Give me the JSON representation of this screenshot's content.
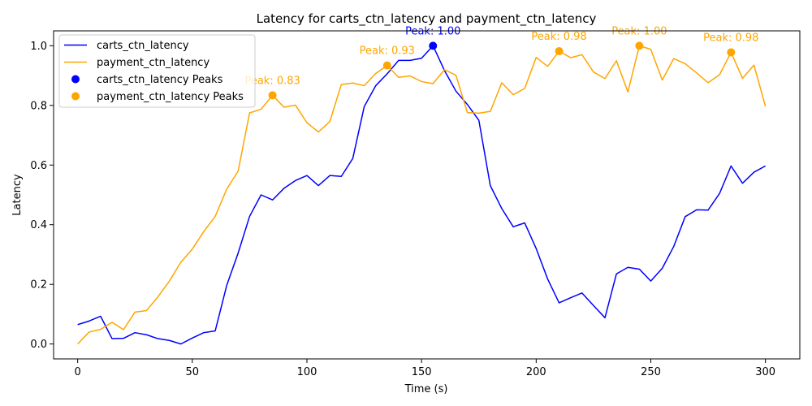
{
  "chart_data": {
    "type": "line",
    "title": "Latency for carts_ctn_latency and payment_ctn_latency",
    "xlabel": "Time (s)",
    "ylabel": "Latency",
    "xlim": [
      -10.5,
      315
    ],
    "ylim": [
      -0.05,
      1.05
    ],
    "x_ticks": [
      0,
      50,
      100,
      150,
      200,
      250,
      300
    ],
    "y_ticks": [
      0.0,
      0.2,
      0.4,
      0.6,
      0.8,
      1.0
    ],
    "x_tick_labels": [
      "0",
      "50",
      "100",
      "150",
      "200",
      "250",
      "300"
    ],
    "y_tick_labels": [
      "0.0",
      "0.2",
      "0.4",
      "0.6",
      "0.8",
      "1.0"
    ],
    "grid": false,
    "legend_position": "top-left",
    "x": [
      0,
      5,
      10,
      15,
      20,
      25,
      30,
      35,
      40,
      45,
      50,
      55,
      60,
      65,
      70,
      75,
      80,
      85,
      90,
      95,
      100,
      105,
      110,
      115,
      120,
      125,
      130,
      135,
      140,
      145,
      150,
      155,
      160,
      165,
      170,
      175,
      180,
      185,
      190,
      195,
      200,
      205,
      210,
      215,
      220,
      225,
      230,
      235,
      240,
      245,
      250,
      255,
      260,
      265,
      270,
      275,
      280,
      285,
      290,
      295,
      300
    ],
    "series": [
      {
        "name": "carts_ctn_latency",
        "color": "#0000ff",
        "values": [
          0.065,
          0.077,
          0.093,
          0.018,
          0.019,
          0.038,
          0.031,
          0.018,
          0.012,
          0.0,
          0.02,
          0.038,
          0.044,
          0.196,
          0.305,
          0.428,
          0.5,
          0.483,
          0.522,
          0.548,
          0.565,
          0.531,
          0.565,
          0.562,
          0.622,
          0.796,
          0.866,
          0.906,
          0.951,
          0.951,
          0.958,
          1.0,
          0.917,
          0.848,
          0.803,
          0.75,
          0.531,
          0.454,
          0.393,
          0.406,
          0.32,
          0.218,
          0.138,
          0.155,
          0.171,
          0.129,
          0.088,
          0.235,
          0.257,
          0.251,
          0.211,
          0.254,
          0.327,
          0.427,
          0.45,
          0.449,
          0.505,
          0.597,
          0.539,
          0.576,
          0.597
        ],
        "peaks": [
          {
            "x": 155,
            "y": 1.0,
            "label": "Peak: 1.00"
          }
        ]
      },
      {
        "name": "payment_ctn_latency",
        "color": "#ffa500",
        "values": [
          0.0,
          0.04,
          0.049,
          0.073,
          0.048,
          0.107,
          0.112,
          0.158,
          0.211,
          0.274,
          0.318,
          0.377,
          0.428,
          0.519,
          0.58,
          0.775,
          0.787,
          0.834,
          0.794,
          0.801,
          0.742,
          0.711,
          0.746,
          0.87,
          0.875,
          0.866,
          0.907,
          0.934,
          0.894,
          0.899,
          0.88,
          0.873,
          0.92,
          0.901,
          0.776,
          0.774,
          0.78,
          0.876,
          0.836,
          0.857,
          0.961,
          0.931,
          0.982,
          0.96,
          0.97,
          0.912,
          0.89,
          0.95,
          0.845,
          1.0,
          0.988,
          0.885,
          0.957,
          0.94,
          0.909,
          0.876,
          0.903,
          0.978,
          0.891,
          0.935,
          0.797
        ],
        "peaks": [
          {
            "x": 85,
            "y": 0.834,
            "label": "Peak: 0.83"
          },
          {
            "x": 135,
            "y": 0.934,
            "label": "Peak: 0.93"
          },
          {
            "x": 210,
            "y": 0.982,
            "label": "Peak: 0.98"
          },
          {
            "x": 245,
            "y": 1.0,
            "label": "Peak: 1.00"
          },
          {
            "x": 285,
            "y": 0.978,
            "label": "Peak: 0.98"
          }
        ]
      }
    ],
    "legend": [
      {
        "label": "carts_ctn_latency",
        "kind": "line",
        "color": "#0000ff"
      },
      {
        "label": "payment_ctn_latency",
        "kind": "line",
        "color": "#ffa500"
      },
      {
        "label": "carts_ctn_latency Peaks",
        "kind": "marker",
        "color": "#0000ff"
      },
      {
        "label": "payment_ctn_latency Peaks",
        "kind": "marker",
        "color": "#ffa500"
      }
    ]
  }
}
